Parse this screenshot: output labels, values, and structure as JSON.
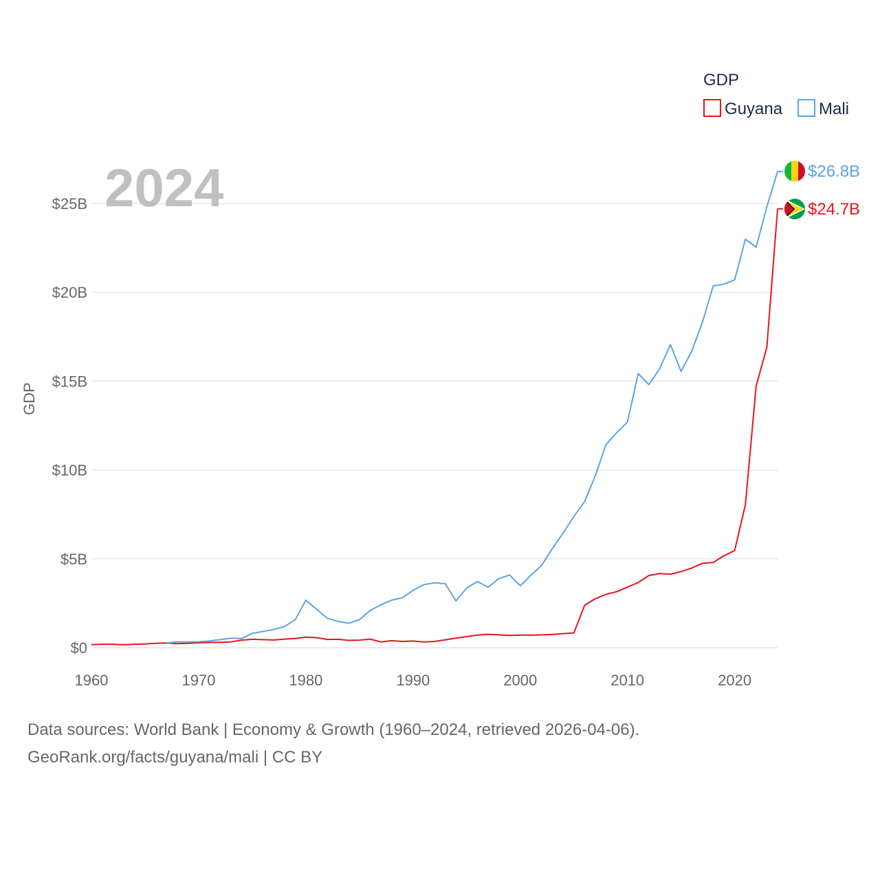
{
  "chart_data": {
    "type": "line",
    "title": "",
    "current_year_label": "2024",
    "xlabel": "",
    "ylabel": "GDP",
    "xlim": [
      1960,
      2024
    ],
    "ylim": [
      0,
      27500000000
    ],
    "xticks": [
      1960,
      1970,
      1980,
      1990,
      2000,
      2010,
      2020
    ],
    "xtick_labels": [
      "1960",
      "1970",
      "1980",
      "1990",
      "2000",
      "2010",
      "2020"
    ],
    "yticks": [
      0,
      5000000000,
      10000000000,
      15000000000,
      20000000000,
      25000000000
    ],
    "ytick_labels": [
      "$0",
      "$5B",
      "$10B",
      "$15B",
      "$20B",
      "$25B"
    ],
    "grid": true,
    "legend": {
      "title": "GDP",
      "position": "top-right"
    },
    "series": [
      {
        "name": "Guyana",
        "color": "#e8141c",
        "end_label": "$24.7B",
        "flag_icon": "guyana-flag-icon",
        "x": [
          1960,
          1961,
          1962,
          1963,
          1964,
          1965,
          1966,
          1967,
          1968,
          1969,
          1970,
          1971,
          1972,
          1973,
          1974,
          1975,
          1976,
          1977,
          1978,
          1979,
          1980,
          1981,
          1982,
          1983,
          1984,
          1985,
          1986,
          1987,
          1988,
          1989,
          1990,
          1991,
          1992,
          1993,
          1994,
          1995,
          1996,
          1997,
          1998,
          1999,
          2000,
          2001,
          2002,
          2003,
          2004,
          2005,
          2006,
          2007,
          2008,
          2009,
          2010,
          2011,
          2012,
          2013,
          2014,
          2015,
          2016,
          2017,
          2018,
          2019,
          2020,
          2021,
          2022,
          2023,
          2024
        ],
        "values": [
          0.17,
          0.19,
          0.19,
          0.16,
          0.19,
          0.21,
          0.24,
          0.26,
          0.22,
          0.24,
          0.27,
          0.29,
          0.3,
          0.32,
          0.42,
          0.47,
          0.45,
          0.43,
          0.48,
          0.51,
          0.59,
          0.56,
          0.46,
          0.47,
          0.41,
          0.42,
          0.48,
          0.32,
          0.39,
          0.35,
          0.37,
          0.32,
          0.35,
          0.44,
          0.53,
          0.62,
          0.71,
          0.75,
          0.72,
          0.69,
          0.71,
          0.7,
          0.72,
          0.74,
          0.79,
          0.83,
          2.38,
          2.75,
          3.0,
          3.15,
          3.4,
          3.67,
          4.06,
          4.17,
          4.13,
          4.28,
          4.48,
          4.75,
          4.79,
          5.17,
          5.47,
          8.04,
          14.72,
          16.9,
          24.7
        ]
      },
      {
        "name": "Mali",
        "color": "#5aa3e6",
        "end_label": "$26.8B",
        "flag_icon": "mali-flag-icon",
        "x": [
          1967,
          1968,
          1969,
          1970,
          1971,
          1972,
          1973,
          1974,
          1975,
          1976,
          1977,
          1978,
          1979,
          1980,
          1981,
          1982,
          1983,
          1984,
          1985,
          1986,
          1987,
          1988,
          1989,
          1990,
          1991,
          1992,
          1993,
          1994,
          1995,
          1996,
          1997,
          1998,
          1999,
          2000,
          2001,
          2002,
          2003,
          2004,
          2005,
          2006,
          2007,
          2008,
          2009,
          2010,
          2011,
          2012,
          2013,
          2014,
          2015,
          2016,
          2017,
          2018,
          2019,
          2020,
          2021,
          2022,
          2023,
          2024
        ],
        "values": [
          0.26,
          0.32,
          0.32,
          0.33,
          0.37,
          0.45,
          0.53,
          0.51,
          0.8,
          0.91,
          1.02,
          1.19,
          1.56,
          2.67,
          2.16,
          1.65,
          1.48,
          1.37,
          1.57,
          2.09,
          2.41,
          2.67,
          2.81,
          3.22,
          3.55,
          3.65,
          3.6,
          2.63,
          3.35,
          3.72,
          3.4,
          3.88,
          4.09,
          3.48,
          4.08,
          4.63,
          5.58,
          6.45,
          7.38,
          8.22,
          9.68,
          11.43,
          12.1,
          12.7,
          15.42,
          14.8,
          15.7,
          17.06,
          15.55,
          16.7,
          18.33,
          20.36,
          20.46,
          20.7,
          22.99,
          22.54,
          24.81,
          26.8
        ]
      }
    ],
    "units_note": "values in billions of US dollars"
  },
  "legend_items": [
    {
      "label": "Guyana",
      "color": "#e8141c"
    },
    {
      "label": "Mali",
      "color": "#5aa3e6"
    }
  ],
  "source": {
    "line1": "Data sources: World Bank | Economy & Growth (1960–2024, retrieved 2026-04-06).",
    "line2": "GeoRank.org/facts/guyana/mali | CC BY"
  }
}
